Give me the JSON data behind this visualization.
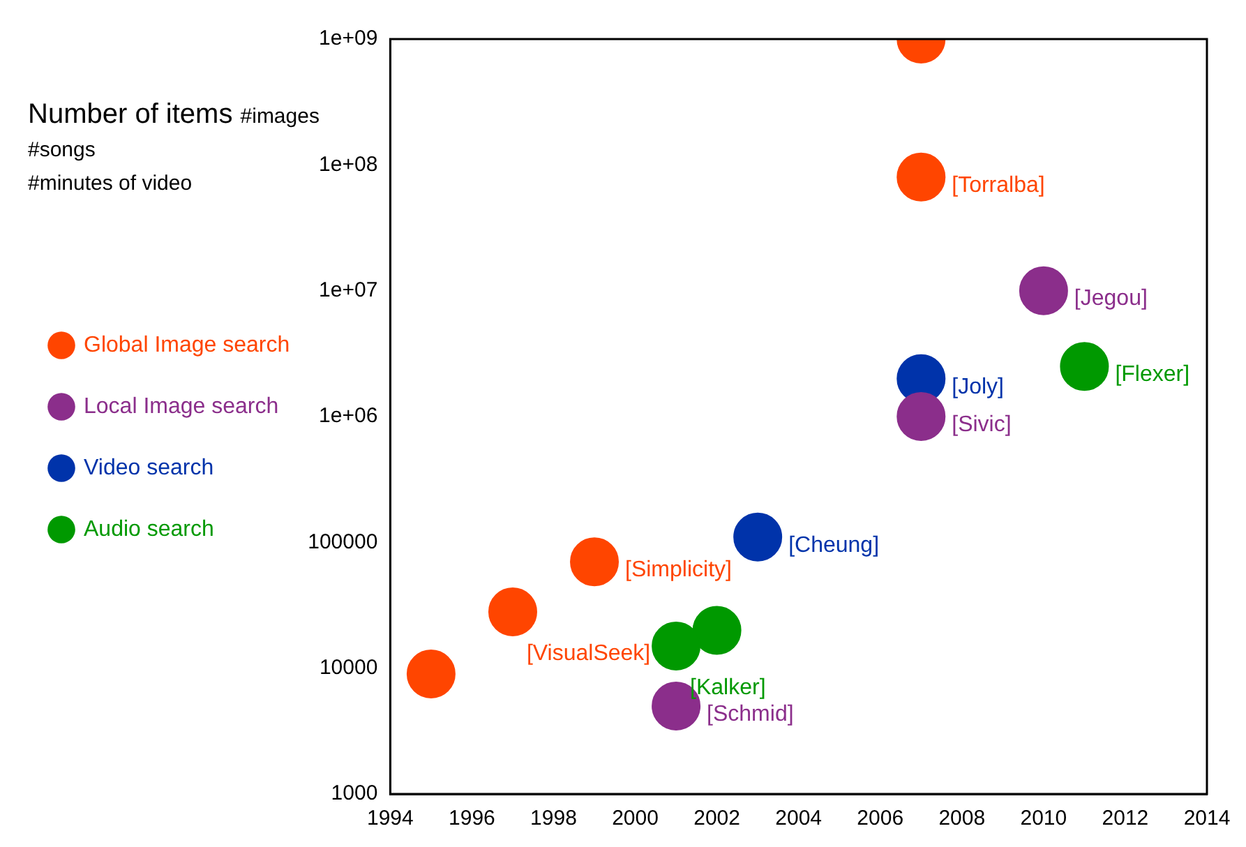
{
  "chart_data": {
    "type": "scatter",
    "ylabel": "Number of items #images\n#songs\n#minutes of video",
    "series": [
      {
        "name": "Global Image search",
        "color": "#ff4500",
        "x": [
          2007,
          2007,
          1999,
          1997,
          1995
        ],
        "values": [
          1000000000,
          80000000,
          70000,
          28000,
          9000
        ]
      },
      {
        "name": "Local Image search",
        "color": "#8b2e8b",
        "x": [
          2010,
          2007,
          2001
        ],
        "values": [
          10000000,
          1000000,
          5000
        ]
      },
      {
        "name": "Video search",
        "color": "#0033aa",
        "x": [
          2007,
          2003
        ],
        "values": [
          2000000,
          110000
        ]
      },
      {
        "name": "Audio search",
        "color": "#009900",
        "x": [
          2011,
          2002,
          2001
        ],
        "values": [
          2500000,
          20000,
          15000
        ]
      }
    ],
    "annotations": [
      {
        "text": "[Torralba]",
        "x": 2007,
        "y": 80000000
      },
      {
        "text": "[Simplicity]",
        "x": 1999,
        "y": 70000
      },
      {
        "text": "[VisualSeek]",
        "x": 1997,
        "y": 28000
      },
      {
        "text": "[Jegou]",
        "x": 2010,
        "y": 10000000
      },
      {
        "text": "[Sivic]",
        "x": 2007,
        "y": 1000000
      },
      {
        "text": "[Schmid]",
        "x": 2001,
        "y": 5000
      },
      {
        "text": "[Joly]",
        "x": 2007,
        "y": 2000000
      },
      {
        "text": "[Cheung]",
        "x": 2003,
        "y": 110000
      },
      {
        "text": "[Flexer]",
        "x": 2011,
        "y": 2500000
      },
      {
        "text": "[Kalker]",
        "x": 2001,
        "y": 15000
      }
    ],
    "log": "y",
    "xlim": [
      1994,
      2014
    ],
    "xticks": [
      1994,
      1996,
      1998,
      2000,
      2002,
      2004,
      2006,
      2008,
      2010,
      2012,
      2014
    ],
    "ylim": [
      1000,
      1000000000
    ],
    "yticks": [
      1000,
      10000,
      100000,
      {
        "value": 1000000,
        "label": "1e+06"
      },
      {
        "value": 10000000,
        "label": "1e+07"
      },
      {
        "value": 100000000,
        "label": "1e+08"
      },
      {
        "value": 1000000000,
        "label": "1e+09"
      }
    ],
    "legend": "left",
    "marker": "circle",
    "grid": false
  }
}
